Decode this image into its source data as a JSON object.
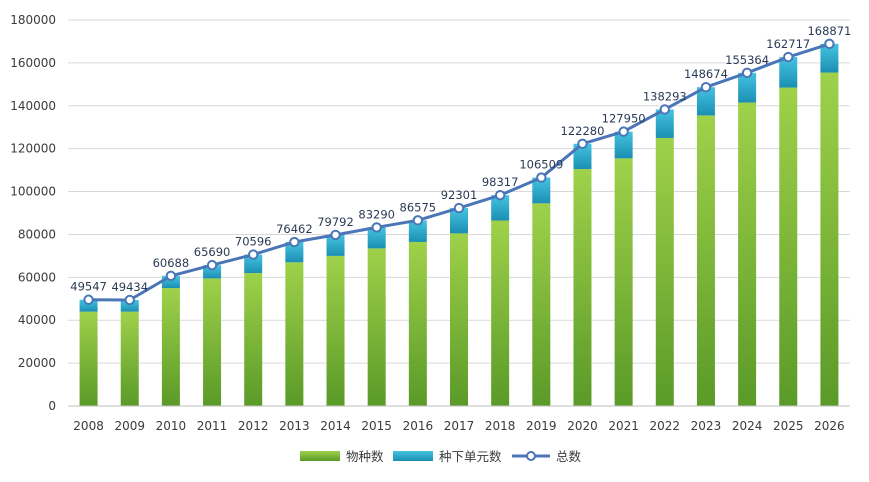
{
  "chart_data": {
    "type": "bar",
    "stacked": true,
    "categories": [
      "2008",
      "2009",
      "2010",
      "2011",
      "2012",
      "2013",
      "2014",
      "2015",
      "2016",
      "2017",
      "2018",
      "2019",
      "2020",
      "2021",
      "2022",
      "2023",
      "2024",
      "2025",
      "2026"
    ],
    "series": [
      {
        "name": "物种数",
        "type": "bar",
        "color": "#8cc63f",
        "values": [
          44000,
          44000,
          55000,
          59500,
          62000,
          67000,
          70000,
          73500,
          76500,
          80500,
          86500,
          94500,
          110500,
          115500,
          125000,
          135500,
          141500,
          148500,
          155500
        ]
      },
      {
        "name": "种下单元数",
        "type": "bar",
        "color": "#2aa8c8",
        "values": [
          5547,
          5434,
          5688,
          6190,
          8596,
          9462,
          9792,
          9790,
          10075,
          11801,
          11817,
          12009,
          11780,
          12450,
          13293,
          13174,
          13864,
          14217,
          13371
        ]
      },
      {
        "name": "总数",
        "type": "line",
        "color": "#4a76b8",
        "values": [
          49547,
          49434,
          60688,
          65690,
          70596,
          76462,
          79792,
          83290,
          86575,
          92301,
          98317,
          106509,
          122280,
          127950,
          138293,
          148674,
          155364,
          162717,
          168871
        ]
      }
    ],
    "y_ticks": [
      "0",
      "20000",
      "40000",
      "60000",
      "80000",
      "100000",
      "120000",
      "140000",
      "160000",
      "180000"
    ],
    "ylim": [
      0,
      180000
    ],
    "grid": true,
    "legend": "bottom-center",
    "title": "",
    "xlabel": "",
    "ylabel": ""
  }
}
